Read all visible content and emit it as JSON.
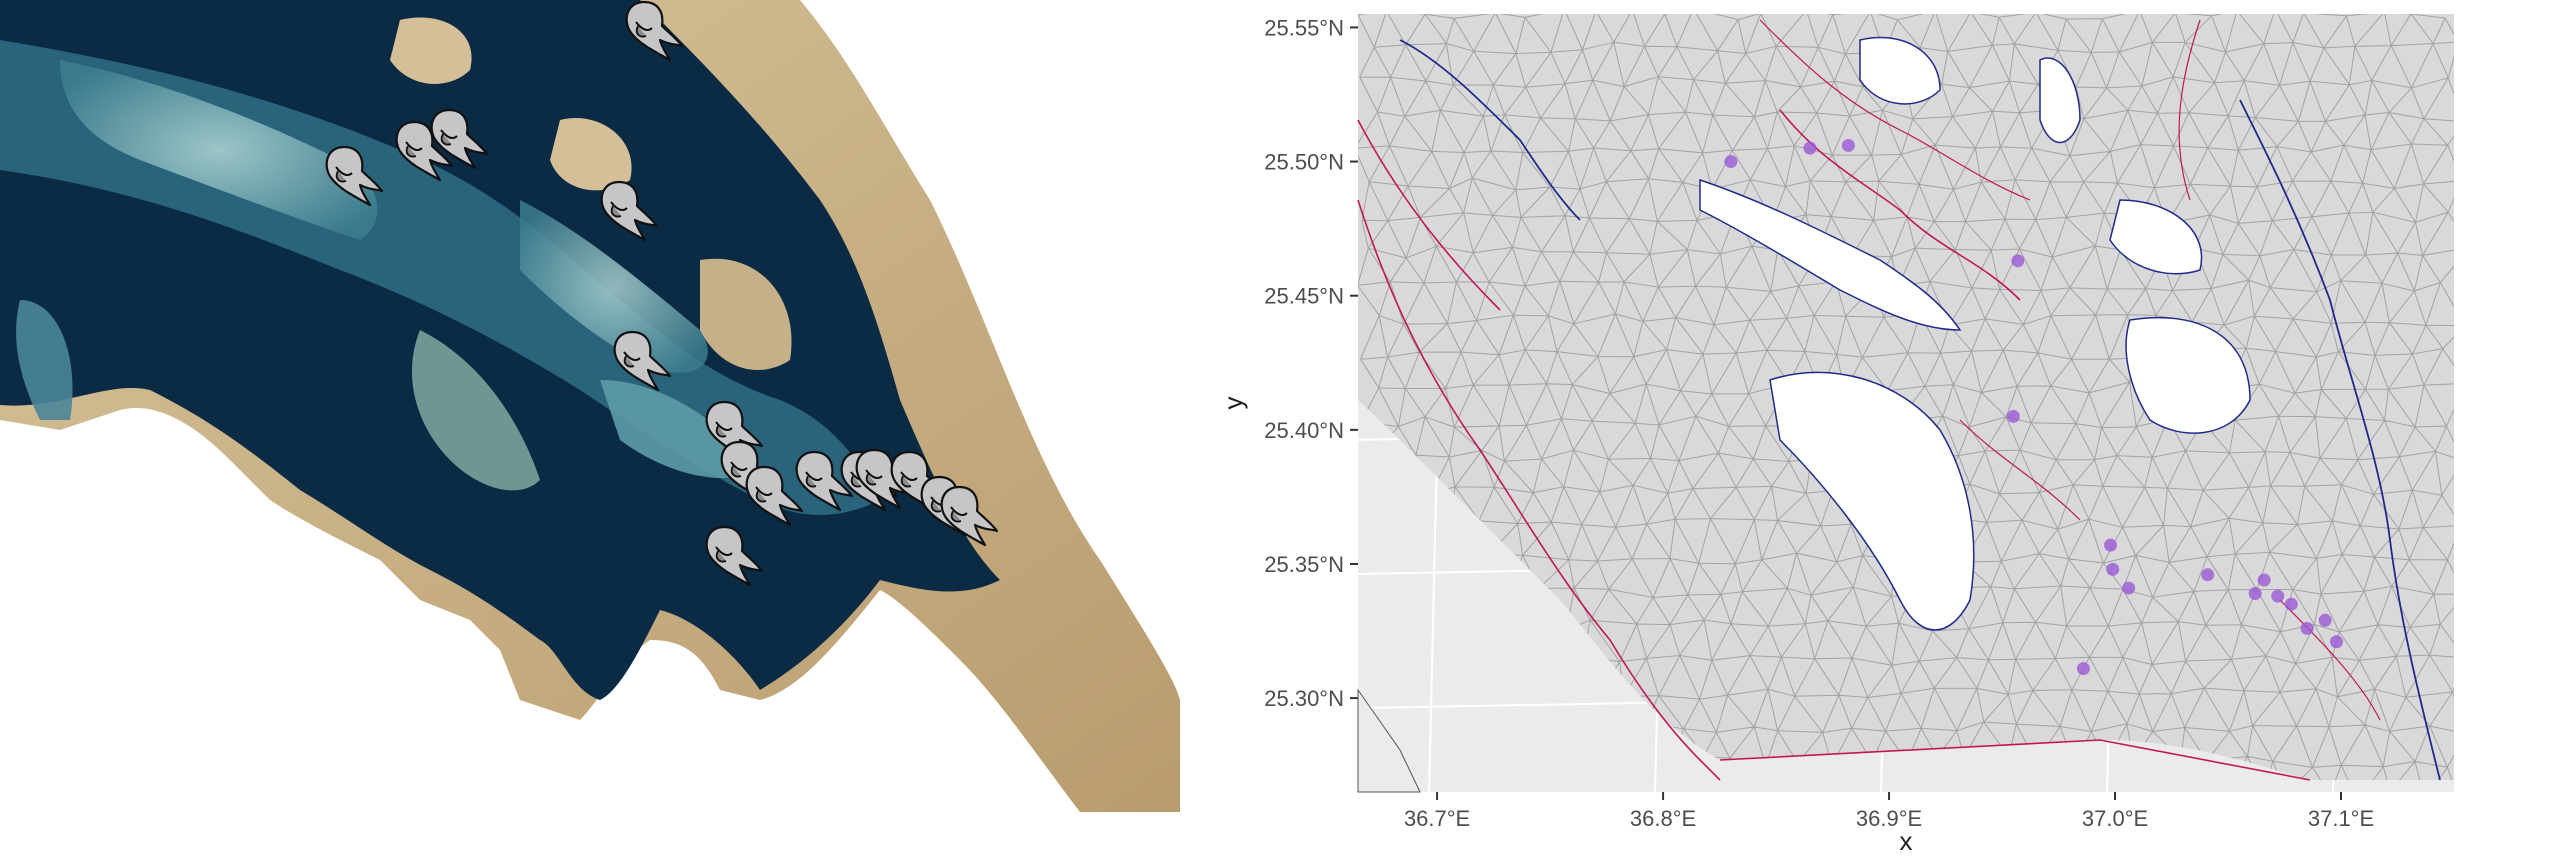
{
  "left_map": {
    "marker_icon": "dugong-icon",
    "marker_count": 16,
    "colors": {
      "deep_water": "#0b2a44",
      "shallow_water": "#2f6f86",
      "reef": "#8fc1c4",
      "sand": "#c9b38a",
      "marker_fill": "#c6c6c8",
      "marker_stroke": "#111111"
    }
  },
  "right_map": {
    "x_axis_title": "x",
    "y_axis_title": "y",
    "x_ticks": [
      "36.7°E",
      "36.8°E",
      "36.9°E",
      "37.0°E",
      "37.1°E"
    ],
    "y_ticks": [
      "25.55°N",
      "25.50°N",
      "25.45°N",
      "25.40°N",
      "25.35°N",
      "25.30°N"
    ],
    "colors": {
      "panel_background": "#ebebeb",
      "grid_lines": "#ffffff",
      "mesh_edges": "#a3a3a3",
      "mesh_fill": "#d9d9d9",
      "outer_boundary": "#c2185b",
      "coastline": "#1f2a8c",
      "points": "#9b59d6"
    }
  },
  "chart_data": {
    "type": "scatter",
    "title": "",
    "xlabel": "x",
    "ylabel": "y",
    "xlim": [
      36.665,
      37.15
    ],
    "ylim": [
      25.265,
      25.555
    ],
    "grid": true,
    "x": [
      36.83,
      36.865,
      36.882,
      36.957,
      36.955,
      36.998,
      36.999,
      37.006,
      37.041,
      37.062,
      37.066,
      37.072,
      37.078,
      37.085,
      37.093,
      37.098,
      36.986
    ],
    "y": [
      25.5,
      25.505,
      25.506,
      25.463,
      25.405,
      25.357,
      25.348,
      25.341,
      25.346,
      25.339,
      25.344,
      25.338,
      25.335,
      25.326,
      25.329,
      25.321,
      25.311
    ]
  }
}
